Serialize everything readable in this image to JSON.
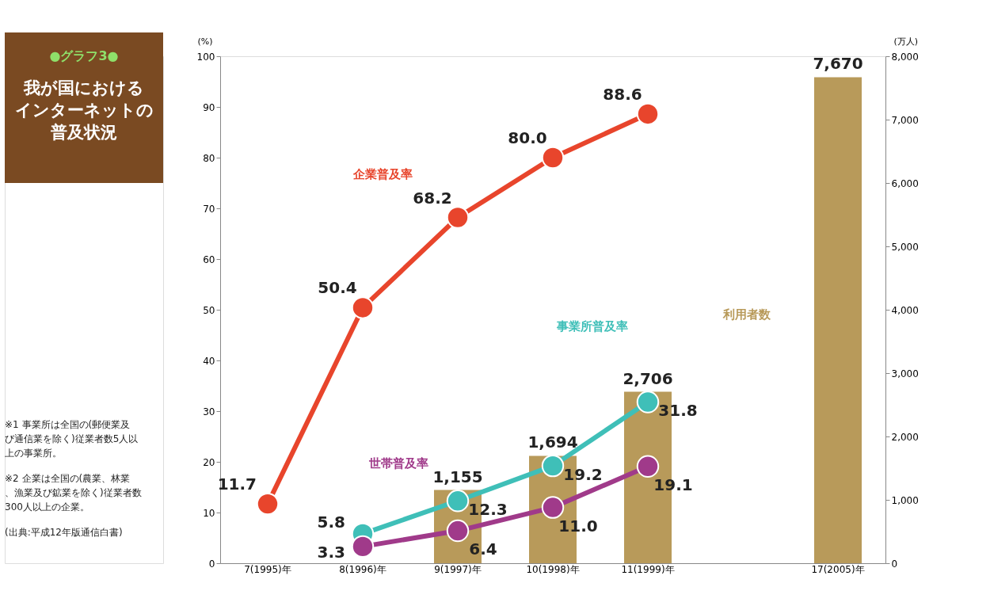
{
  "chart_data": {
    "type": "line",
    "title": "我が国におけるインターネットの普及状況",
    "subtitle": "●グラフ3●",
    "ylabel": "(%)",
    "y2label": "(万人)",
    "categories": [
      "7(1995)年",
      "8(1996)年",
      "9(1997)年",
      "10(1998)年",
      "11(1999)年",
      null,
      "17(2005)年"
    ],
    "series": [
      {
        "name": "利用者数",
        "type": "bar",
        "axis": "y2",
        "color": "#b89a5a",
        "values": [
          null,
          null,
          1155,
          1694,
          2706,
          null,
          7670
        ],
        "value_labels": [
          null,
          null,
          "1,155",
          "1,694",
          "2,706",
          null,
          "7,670"
        ]
      },
      {
        "name": "企業普及率",
        "color": "#e8452c",
        "values": [
          11.7,
          50.4,
          68.2,
          80.0,
          88.6,
          null,
          null
        ],
        "value_labels": [
          "11.7",
          "50.4",
          "68.2",
          "80.0",
          "88.6",
          null,
          null
        ]
      },
      {
        "name": "事業所普及率",
        "color": "#3fbfb8",
        "values": [
          null,
          5.8,
          12.3,
          19.2,
          31.8,
          null,
          null
        ],
        "value_labels": [
          null,
          "5.8",
          "12.3",
          "19.2",
          "31.8",
          null,
          null
        ]
      },
      {
        "name": "世帯普及率",
        "color": "#a03a8a",
        "values": [
          null,
          3.3,
          6.4,
          11.0,
          19.1,
          null,
          null
        ],
        "value_labels": [
          null,
          "3.3",
          "6.4",
          "11.0",
          "19.1",
          null,
          null
        ]
      }
    ],
    "ylim": [
      0,
      100
    ],
    "yticks": [
      0,
      10,
      20,
      30,
      40,
      50,
      60,
      70,
      80,
      90,
      100
    ],
    "y2lim": [
      0,
      8000
    ],
    "y2ticks": [
      0,
      {
        "value": 1000,
        "label": "1,000"
      },
      {
        "value": 2000,
        "label": "2,000"
      },
      {
        "value": 3000,
        "label": "3,000"
      },
      {
        "value": 4000,
        "label": "4,000"
      },
      {
        "value": 5000,
        "label": "5,000"
      },
      {
        "value": 6000,
        "label": "6,000"
      },
      {
        "value": 7000,
        "label": "7,000"
      },
      {
        "value": 8000,
        "label": "8,000"
      }
    ],
    "marker": "circle",
    "line_style": "solid",
    "annotations": [
      "※1 事業所は全国の(郵便業及び通信業を除く)従業者数5人以上の事業所。",
      "※2 企業は全国の(農業、林業、漁業及び鉱業を除く)従業者数300人以上の企業。",
      "(出典:平成12年版通信白書)"
    ]
  }
}
